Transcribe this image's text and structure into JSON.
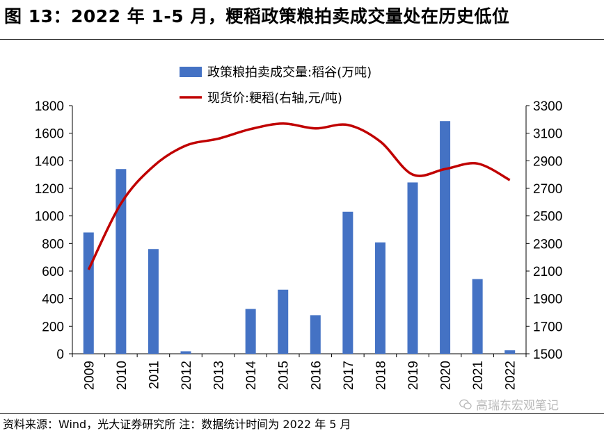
{
  "header": {
    "title": "图 13：2022 年 1-5 月，粳稻政策粮拍卖成交量处在历史低位"
  },
  "footer": {
    "source": "资料来源：Wind，光大证券研究所  注：数据统计时间为 2022 年 5 月"
  },
  "watermark": {
    "text": "高瑞东宏观笔记",
    "icon": "wechat-icon"
  },
  "chart_data": {
    "type": "bar",
    "categories": [
      "2009",
      "2010",
      "2011",
      "2012",
      "2013",
      "2014",
      "2015",
      "2016",
      "2017",
      "2018",
      "2019",
      "2020",
      "2021",
      "2022"
    ],
    "series": [
      {
        "name": "政策粮拍卖成交量:稻谷(万吨)",
        "kind": "bar",
        "axis": "left",
        "color": "#4472C4",
        "values": [
          880,
          1340,
          760,
          18,
          0,
          325,
          465,
          280,
          1030,
          808,
          1243,
          1688,
          542,
          25
        ]
      },
      {
        "name": "现货价:粳稻(右轴,元/吨)",
        "kind": "line",
        "axis": "right",
        "color": "#C00000",
        "values": [
          2110,
          2590,
          2860,
          3010,
          3060,
          3130,
          3170,
          3135,
          3160,
          3040,
          2800,
          2840,
          2880,
          2760
        ]
      }
    ],
    "yleft": {
      "ylim": [
        0,
        1800
      ],
      "ticks": [
        "0",
        "200",
        "400",
        "600",
        "800",
        "1000",
        "1200",
        "1400",
        "1600",
        "1800"
      ]
    },
    "yright": {
      "ylim": [
        1500,
        3300
      ],
      "ticks": [
        "1500",
        "1700",
        "1900",
        "2100",
        "2300",
        "2500",
        "2700",
        "2900",
        "3100",
        "3300"
      ]
    },
    "legend_position": "top-center",
    "grid": false
  }
}
